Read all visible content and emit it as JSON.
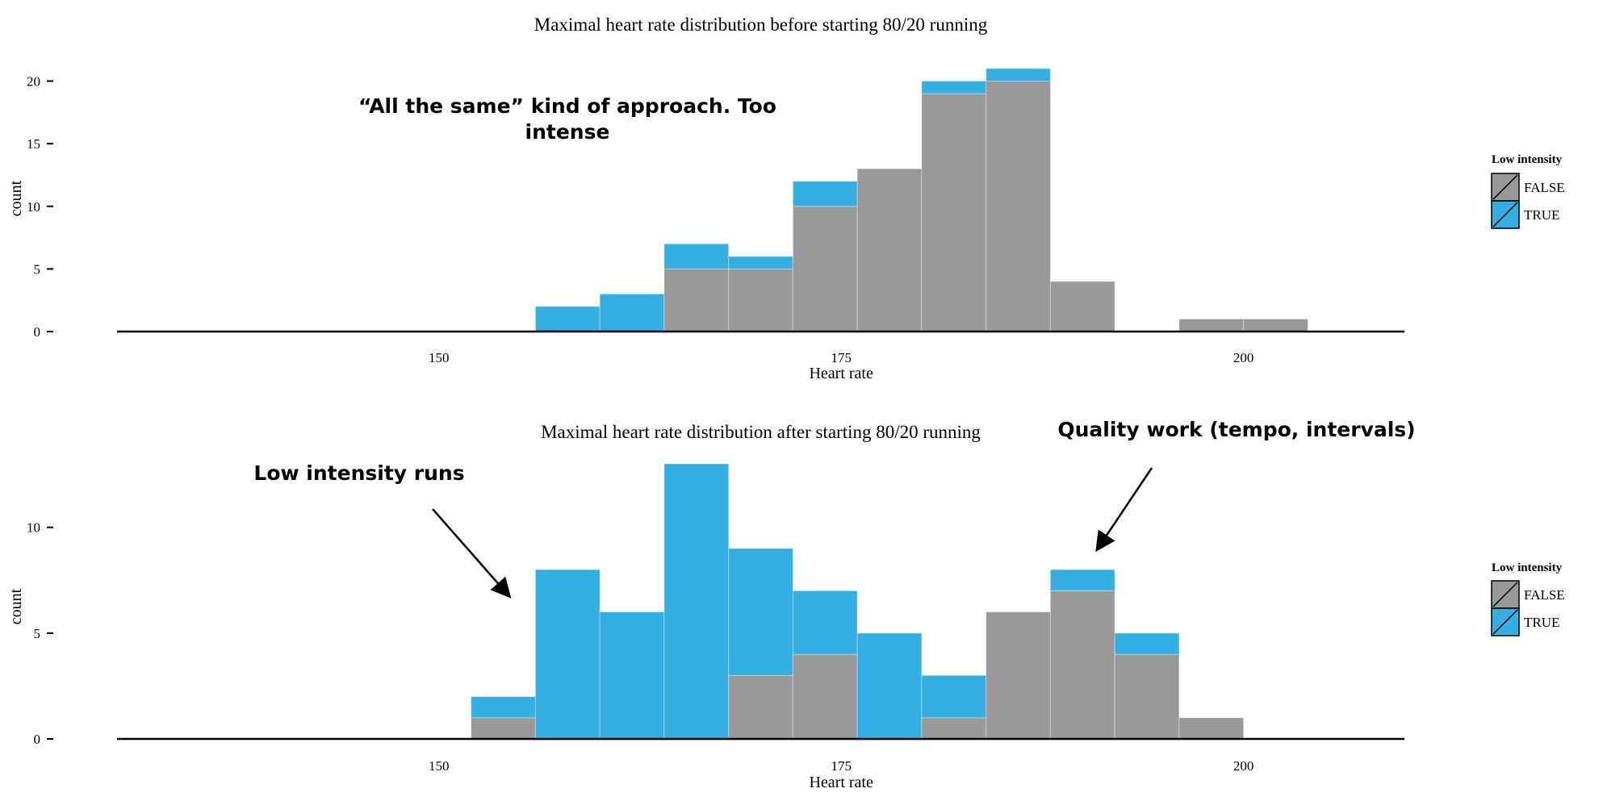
{
  "colors": {
    "false_fill": "#999999",
    "true_fill": "#35aee2",
    "axis": "#000000",
    "text": "#000000"
  },
  "chart_data": [
    {
      "type": "bar",
      "stacked": true,
      "title": "Maximal heart rate distribution before starting 80/20 running",
      "xlabel": "Heart rate",
      "ylabel": "count",
      "xlim": [
        130,
        210
      ],
      "ylim": [
        0,
        21
      ],
      "xticks": [
        150,
        175,
        200
      ],
      "yticks": [
        0,
        5,
        10,
        15,
        20
      ],
      "bin_width": 4,
      "bin_starts": [
        156,
        160,
        164,
        168,
        172,
        176,
        180,
        184,
        188,
        192,
        196,
        200
      ],
      "series": [
        {
          "name": "FALSE",
          "color": "#999999",
          "values": [
            0,
            0,
            5,
            5,
            10,
            13,
            19,
            20,
            4,
            0,
            1,
            1
          ]
        },
        {
          "name": "TRUE",
          "color": "#35aee2",
          "values": [
            2,
            3,
            2,
            1,
            2,
            0,
            1,
            1,
            0,
            0,
            0,
            0
          ]
        }
      ],
      "legend": {
        "title": "Low intensity",
        "entries": [
          "FALSE",
          "TRUE"
        ],
        "position": "right"
      },
      "annotations": [
        {
          "text_lines": [
            "“All the same” kind of approach. Too",
            "intense"
          ]
        }
      ]
    },
    {
      "type": "bar",
      "stacked": true,
      "title": "Maximal heart rate distribution after starting 80/20 running",
      "xlabel": "Heart rate",
      "ylabel": "count",
      "xlim": [
        130,
        210
      ],
      "ylim": [
        0,
        13
      ],
      "xticks": [
        150,
        175,
        200
      ],
      "yticks": [
        0,
        5,
        10
      ],
      "bin_width": 4,
      "bin_starts": [
        152,
        156,
        160,
        164,
        168,
        172,
        176,
        180,
        184,
        188,
        192,
        196
      ],
      "series": [
        {
          "name": "FALSE",
          "color": "#999999",
          "values": [
            1,
            0,
            0,
            0,
            3,
            4,
            0,
            1,
            6,
            7,
            4,
            1
          ]
        },
        {
          "name": "TRUE",
          "color": "#35aee2",
          "values": [
            1,
            8,
            6,
            13,
            6,
            3,
            5,
            2,
            0,
            1,
            1,
            0
          ]
        }
      ],
      "legend": {
        "title": "Low intensity",
        "entries": [
          "FALSE",
          "TRUE"
        ],
        "position": "right"
      },
      "annotations": [
        {
          "text_lines": [
            "Low intensity runs"
          ]
        },
        {
          "text_lines": [
            "Quality work (tempo, intervals)"
          ]
        }
      ]
    }
  ]
}
